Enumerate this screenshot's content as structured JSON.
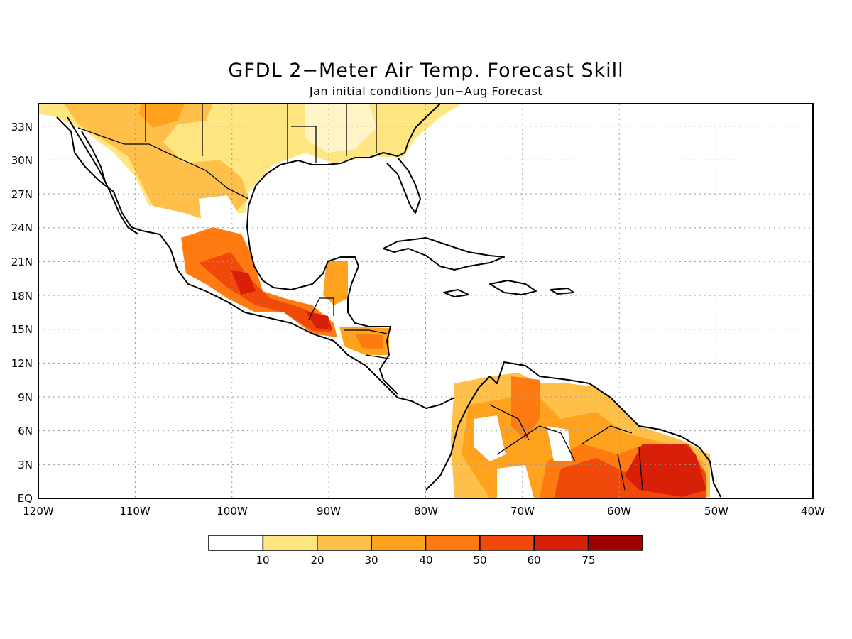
{
  "title": "GFDL 2−Meter Air Temp. Forecast Skill",
  "subtitle": "Jan initial conditions   Jun−Aug Forecast",
  "map": {
    "lon_range": [
      -120,
      -40
    ],
    "lat_range": [
      0,
      35
    ],
    "x_ticks": [
      "120W",
      "110W",
      "100W",
      "90W",
      "80W",
      "70W",
      "60W",
      "50W",
      "40W"
    ],
    "y_ticks": [
      "EQ",
      "3N",
      "6N",
      "9N",
      "12N",
      "15N",
      "18N",
      "21N",
      "24N",
      "27N",
      "30N",
      "33N"
    ],
    "grid": "dotted"
  },
  "legend": {
    "labels": [
      "10",
      "20",
      "30",
      "40",
      "50",
      "60",
      "75"
    ],
    "colors": [
      "#ffffff",
      "#ffe680",
      "#ffc04a",
      "#ffa31f",
      "#ff7a10",
      "#f04a0a",
      "#d82008",
      "#a00000"
    ]
  }
}
